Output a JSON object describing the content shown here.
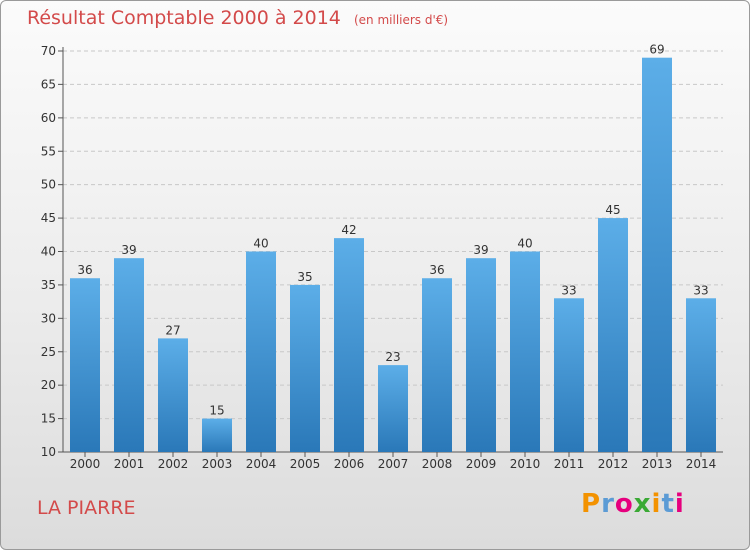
{
  "title": "Résultat Comptable 2000 à 2014",
  "subtitle": "(en milliers d'€)",
  "commune": "LA PIARRE",
  "logo": {
    "text": "Proxiti",
    "letters": [
      {
        "ch": "P",
        "color": "#f39200"
      },
      {
        "ch": "r",
        "color": "#5b9bd5"
      },
      {
        "ch": "o",
        "color": "#e6007e"
      },
      {
        "ch": "x",
        "color": "#3aa935"
      },
      {
        "ch": "i",
        "color": "#f39200"
      },
      {
        "ch": "t",
        "color": "#5b9bd5"
      },
      {
        "ch": "i",
        "color": "#e6007e"
      }
    ]
  },
  "colors": {
    "title": "#d34a4a",
    "bar_top": "#5caee8",
    "bar_bottom": "#2a78b8",
    "grid": "#c8c8c8",
    "axis": "#555555"
  },
  "chart_data": {
    "type": "bar",
    "title": "Résultat Comptable 2000 à 2014",
    "subtitle": "(en milliers d'€)",
    "categories": [
      "2000",
      "2001",
      "2002",
      "2003",
      "2004",
      "2005",
      "2006",
      "2007",
      "2008",
      "2009",
      "2010",
      "2011",
      "2012",
      "2013",
      "2014"
    ],
    "values": [
      36,
      39,
      27,
      15,
      40,
      35,
      42,
      23,
      36,
      39,
      40,
      33,
      45,
      69,
      33
    ],
    "ylim": [
      10,
      70
    ],
    "yticks": [
      10,
      15,
      20,
      25,
      30,
      35,
      40,
      45,
      50,
      55,
      60,
      65,
      70
    ],
    "grid": "horizontal dashed",
    "data_labels": true
  }
}
